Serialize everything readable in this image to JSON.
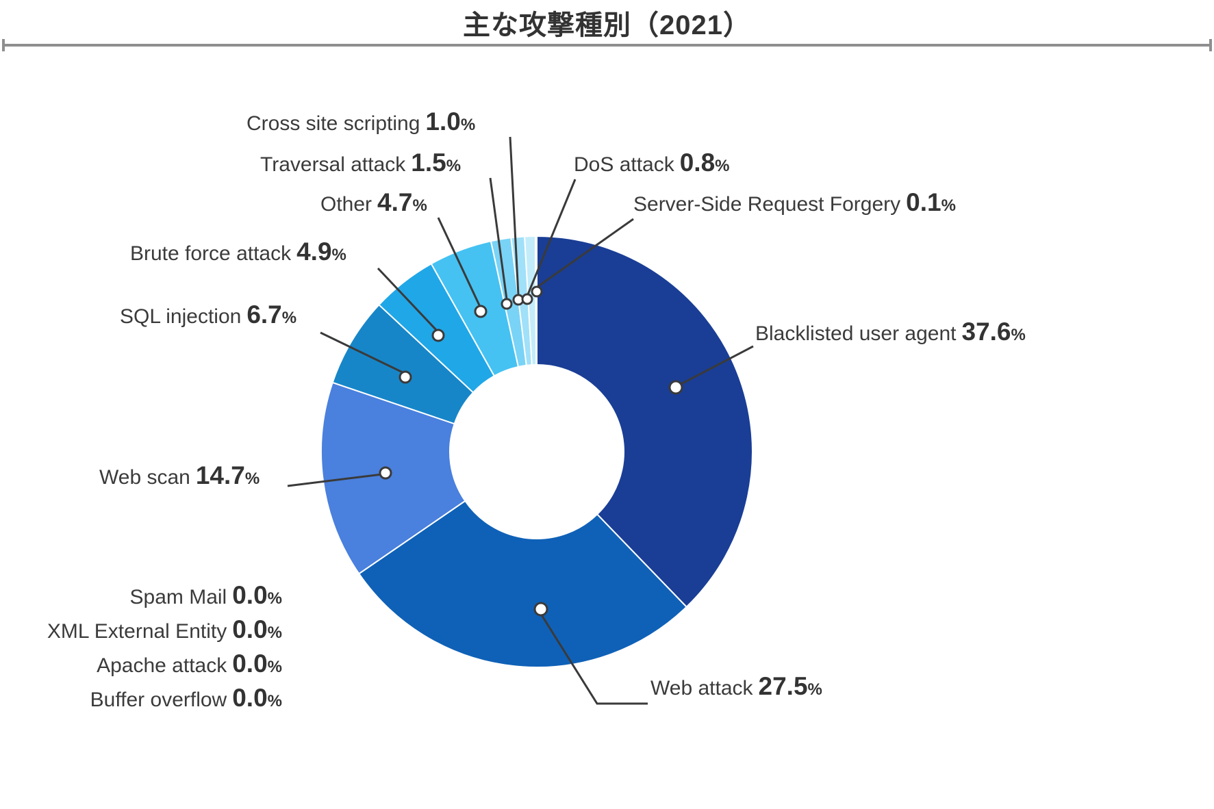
{
  "chart_data": {
    "type": "pie",
    "subtype": "donut",
    "title": "主な攻撃種別（2021）",
    "unit": "%",
    "legend_position": "callout-labels",
    "start_angle": "top",
    "direction": "clockwise",
    "slices": [
      {
        "label": "Blacklisted user agent",
        "value": 37.6,
        "display": "37.6",
        "color": "#1a3e96"
      },
      {
        "label": "Web attack",
        "value": 27.5,
        "display": "27.5",
        "color": "#0f61b7"
      },
      {
        "label": "Web scan",
        "value": 14.7,
        "display": "14.7",
        "color": "#4a80de"
      },
      {
        "label": "SQL injection",
        "value": 6.7,
        "display": "6.7",
        "color": "#1786c8"
      },
      {
        "label": "Brute force attack",
        "value": 4.9,
        "display": "4.9",
        "color": "#20a7e8"
      },
      {
        "label": "Other",
        "value": 4.7,
        "display": "4.7",
        "color": "#45c2f2"
      },
      {
        "label": "Traversal attack",
        "value": 1.5,
        "display": "1.5",
        "color": "#79d3f6"
      },
      {
        "label": "Cross site scripting",
        "value": 1.0,
        "display": "1.0",
        "color": "#a0e0f9"
      },
      {
        "label": "DoS attack",
        "value": 0.8,
        "display": "0.8",
        "color": "#c3ecfb"
      },
      {
        "label": "Server-Side Request Forgery",
        "value": 0.1,
        "display": "0.1",
        "color": "#dff5fd"
      },
      {
        "label": "Spam Mail",
        "value": 0.0,
        "display": "0.0",
        "color": null
      },
      {
        "label": "XML External Entity",
        "value": 0.0,
        "display": "0.0",
        "color": null
      },
      {
        "label": "Apache attack",
        "value": 0.0,
        "display": "0.0",
        "color": null
      },
      {
        "label": "Buffer overflow",
        "value": 0.0,
        "display": "0.0",
        "color": null
      }
    ]
  }
}
